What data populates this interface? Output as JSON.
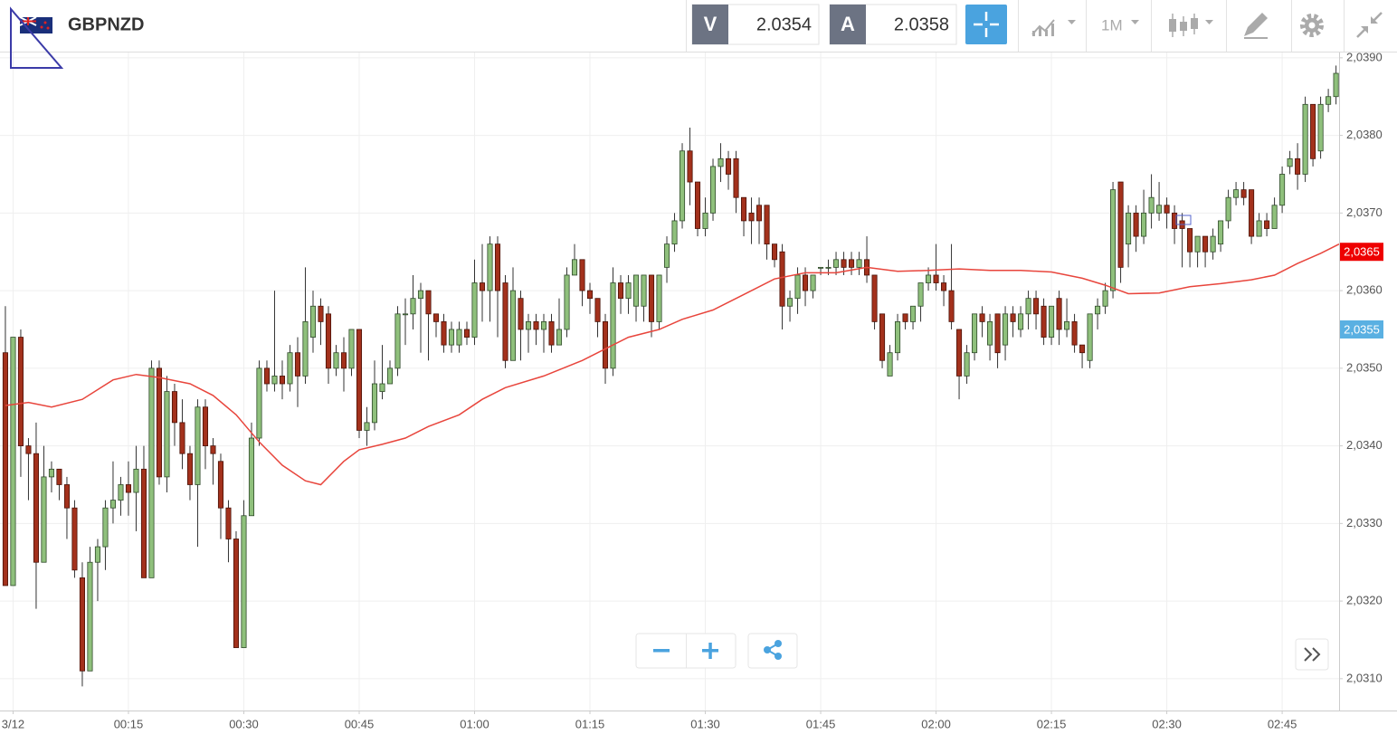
{
  "toolbar": {
    "symbol": "GBPNZD",
    "bid_label": "V",
    "bid": "2.0354",
    "ask_label": "A",
    "ask": "2.0358",
    "interval": "1M"
  },
  "chart_data": {
    "type": "candlestick",
    "x": [
      -1,
      0,
      1,
      2,
      3,
      4,
      5,
      6,
      7,
      8,
      9,
      10,
      11,
      12,
      13,
      14,
      15,
      16,
      17,
      18,
      19,
      20,
      21,
      22,
      23,
      24,
      25,
      26,
      27,
      28,
      29,
      30,
      31,
      32,
      33,
      34,
      35,
      36,
      37,
      38,
      39,
      40,
      41,
      42,
      43,
      44,
      45,
      46,
      47,
      48,
      49,
      50,
      51,
      52,
      53,
      54,
      55,
      56,
      57,
      58,
      59,
      60,
      61,
      62,
      63,
      64,
      65,
      66,
      67,
      68,
      69,
      70,
      71,
      72,
      73,
      74,
      75,
      76,
      77,
      78,
      79,
      80,
      81,
      82,
      83,
      84,
      85,
      86,
      87,
      88,
      89,
      90,
      91,
      92,
      93,
      94,
      95,
      96,
      97,
      98,
      99,
      100,
      101,
      102,
      103,
      104,
      105,
      106,
      107,
      108,
      109,
      110,
      111,
      112,
      113,
      114,
      115,
      116,
      117,
      118,
      119,
      120,
      121,
      122,
      123,
      124,
      125,
      126,
      127,
      128,
      129,
      130,
      131,
      132,
      133,
      134,
      135,
      136,
      137,
      138,
      139,
      140,
      141,
      142,
      143,
      144,
      145,
      146,
      147,
      148,
      149,
      150,
      151,
      152,
      153,
      154,
      155,
      156,
      157,
      158,
      159,
      160,
      161,
      162,
      163,
      164,
      165,
      166,
      167,
      168,
      169,
      170,
      171,
      172
    ],
    "open": [
      2.0352,
      2.0322,
      2.0354,
      2.034,
      2.0339,
      2.0325,
      2.0336,
      2.0337,
      2.0335,
      2.0332,
      2.0323,
      2.0311,
      2.0325,
      2.0327,
      2.0332,
      2.0333,
      2.0335,
      2.0334,
      2.0337,
      2.0323,
      2.035,
      2.0336,
      2.0347,
      2.0343,
      2.0339,
      2.0335,
      2.0345,
      2.034,
      2.0338,
      2.0332,
      2.0328,
      2.0314,
      2.0331,
      2.0341,
      2.035,
      2.0348,
      2.0349,
      2.0348,
      2.0352,
      2.0349,
      2.0354,
      2.0358,
      2.0357,
      2.035,
      2.0352,
      2.035,
      2.0355,
      2.0342,
      2.0343,
      2.0347,
      2.0348,
      2.035,
      2.0357,
      2.0357,
      2.0359,
      2.036,
      2.0357,
      2.0356,
      2.0353,
      2.0353,
      2.0355,
      2.0354,
      2.0361,
      2.036,
      2.0366,
      2.0361,
      2.0351,
      2.0359,
      2.0355,
      2.0356,
      2.0355,
      2.0356,
      2.0353,
      2.0355,
      2.0362,
      2.0364,
      2.036,
      2.0359,
      2.0356,
      2.035,
      2.0361,
      2.0359,
      2.0358,
      2.0358,
      2.0362,
      2.0356,
      2.0363,
      2.0366,
      2.0369,
      2.0378,
      2.0374,
      2.0368,
      2.037,
      2.0376,
      2.0377,
      2.0377,
      2.0372,
      2.037,
      2.0371,
      2.0371,
      2.0366,
      2.0365,
      2.0358,
      2.0359,
      2.0362,
      2.036,
      2.0363,
      2.0363,
      2.0363,
      2.0364,
      2.0364,
      2.0363,
      2.0364,
      2.0362,
      2.0357,
      2.0349,
      2.0352,
      2.0357,
      2.0356,
      2.0358,
      2.0361,
      2.0362,
      2.0361,
      2.036,
      2.0355,
      2.0349,
      2.0352,
      2.0357,
      2.0353,
      2.0357,
      2.0353,
      2.0357,
      2.0355,
      2.0357,
      2.0359,
      2.0358,
      2.0354,
      2.0359,
      2.0355,
      2.0356,
      2.0353,
      2.0351,
      2.0357,
      2.0358,
      2.036,
      2.0374,
      2.0366,
      2.037,
      2.0367,
      2.037,
      2.037,
      2.0371,
      2.037,
      2.0369,
      2.0368,
      2.0365,
      2.0367,
      2.0365,
      2.0366,
      2.0369,
      2.0372,
      2.0373,
      2.0373,
      2.0367,
      2.0369,
      2.0368,
      2.0371,
      2.0376,
      2.0377,
      2.0375,
      2.0384,
      2.0378,
      2.0384,
      2.0385
    ],
    "close": [
      2.0322,
      2.0354,
      2.034,
      2.0339,
      2.0325,
      2.0336,
      2.0337,
      2.0335,
      2.0332,
      2.0324,
      2.0311,
      2.0325,
      2.0327,
      2.0332,
      2.0333,
      2.0335,
      2.0334,
      2.0337,
      2.0323,
      2.035,
      2.0336,
      2.0347,
      2.0343,
      2.0339,
      2.0335,
      2.0345,
      2.034,
      2.0339,
      2.0332,
      2.0328,
      2.0314,
      2.0331,
      2.0341,
      2.035,
      2.0348,
      2.0349,
      2.0348,
      2.0352,
      2.0349,
      2.0356,
      2.0358,
      2.0356,
      2.035,
      2.0352,
      2.035,
      2.0355,
      2.0342,
      2.0343,
      2.0348,
      2.0348,
      2.035,
      2.0357,
      2.0357,
      2.0359,
      2.036,
      2.0357,
      2.0356,
      2.0353,
      2.0355,
      2.0355,
      2.0354,
      2.0361,
      2.036,
      2.0366,
      2.036,
      2.0351,
      2.036,
      2.0355,
      2.0356,
      2.0355,
      2.0356,
      2.0353,
      2.0355,
      2.0362,
      2.0364,
      2.036,
      2.0359,
      2.0356,
      2.035,
      2.0361,
      2.0359,
      2.0361,
      2.0362,
      2.0362,
      2.0356,
      2.0362,
      2.0366,
      2.0369,
      2.0378,
      2.0374,
      2.0368,
      2.037,
      2.0376,
      2.0377,
      2.0375,
      2.0372,
      2.0369,
      2.0369,
      2.0369,
      2.0366,
      2.0364,
      2.0358,
      2.0359,
      2.0362,
      2.036,
      2.0362,
      2.0363,
      2.0363,
      2.0364,
      2.0363,
      2.0363,
      2.0364,
      2.0362,
      2.0356,
      2.0351,
      2.0352,
      2.0356,
      2.0356,
      2.0358,
      2.0361,
      2.0362,
      2.0361,
      2.036,
      2.0356,
      2.0349,
      2.0352,
      2.0357,
      2.0356,
      2.0356,
      2.0352,
      2.0357,
      2.0356,
      2.0357,
      2.0359,
      2.0357,
      2.0354,
      2.0358,
      2.0355,
      2.0356,
      2.0353,
      2.0352,
      2.0357,
      2.0358,
      2.036,
      2.0373,
      2.0363,
      2.037,
      2.0367,
      2.037,
      2.0372,
      2.0371,
      2.037,
      2.0368,
      2.0368,
      2.0365,
      2.0367,
      2.0365,
      2.0367,
      2.0369,
      2.0372,
      2.0373,
      2.0372,
      2.0367,
      2.0369,
      2.0368,
      2.0371,
      2.0375,
      2.0377,
      2.0375,
      2.0384,
      2.0377,
      2.0384,
      2.0385,
      2.0388
    ],
    "high": [
      2.0358,
      2.0354,
      2.0355,
      2.0341,
      2.0343,
      2.034,
      2.0338,
      2.0337,
      2.0336,
      2.0333,
      2.0325,
      2.0327,
      2.0328,
      2.0333,
      2.0338,
      2.0336,
      2.0338,
      2.034,
      2.034,
      2.0351,
      2.0351,
      2.0349,
      2.0348,
      2.0346,
      2.034,
      2.0346,
      2.0346,
      2.0341,
      2.0339,
      2.0333,
      2.0329,
      2.0333,
      2.0343,
      2.0351,
      2.0351,
      2.036,
      2.0351,
      2.0353,
      2.0354,
      2.0363,
      2.036,
      2.0359,
      2.0358,
      2.0353,
      2.0354,
      2.0355,
      2.0355,
      2.0345,
      2.0351,
      2.0353,
      2.0351,
      2.0358,
      2.0359,
      2.0362,
      2.0361,
      2.036,
      2.0357,
      2.0357,
      2.0356,
      2.0356,
      2.0356,
      2.0364,
      2.0366,
      2.0367,
      2.0367,
      2.0362,
      2.0363,
      2.036,
      2.0357,
      2.0357,
      2.0357,
      2.0357,
      2.0359,
      2.0363,
      2.0366,
      2.0364,
      2.0361,
      2.0359,
      2.0357,
      2.0363,
      2.0362,
      2.0362,
      2.0362,
      2.0362,
      2.0362,
      2.0362,
      2.0367,
      2.037,
      2.0379,
      2.0381,
      2.0374,
      2.0372,
      2.0377,
      2.0379,
      2.0378,
      2.0378,
      2.0372,
      2.0372,
      2.0372,
      2.0371,
      2.0366,
      2.0366,
      2.036,
      2.0363,
      2.0363,
      2.0362,
      2.0363,
      2.0364,
      2.0365,
      2.0365,
      2.0365,
      2.0365,
      2.0367,
      2.0362,
      2.0357,
      2.0353,
      2.0357,
      2.0357,
      2.0358,
      2.0361,
      2.0363,
      2.0366,
      2.0362,
      2.0366,
      2.0355,
      2.0353,
      2.0357,
      2.0358,
      2.0357,
      2.0357,
      2.0358,
      2.0358,
      2.0358,
      2.036,
      2.036,
      2.0359,
      2.0358,
      2.036,
      2.0359,
      2.0357,
      2.0353,
      2.0357,
      2.0359,
      2.0361,
      2.0374,
      2.0374,
      2.0371,
      2.0371,
      2.0373,
      2.0375,
      2.0374,
      2.0372,
      2.0371,
      2.037,
      2.0368,
      2.0367,
      2.0367,
      2.0368,
      2.0369,
      2.0373,
      2.0374,
      2.0374,
      2.0373,
      2.037,
      2.037,
      2.0372,
      2.0376,
      2.0378,
      2.0379,
      2.0385,
      2.0384,
      2.0385,
      2.0386,
      2.0389
    ],
    "low": [
      2.0322,
      2.0322,
      2.0336,
      2.0333,
      2.0319,
      2.0325,
      2.0334,
      2.0333,
      2.0328,
      2.0323,
      2.0309,
      2.0311,
      2.032,
      2.0324,
      2.033,
      2.0331,
      2.0331,
      2.0329,
      2.0323,
      2.0323,
      2.0335,
      2.0334,
      2.034,
      2.0337,
      2.0333,
      2.0327,
      2.0337,
      2.0335,
      2.0328,
      2.0325,
      2.0314,
      2.0314,
      2.0331,
      2.034,
      2.0347,
      2.0347,
      2.0346,
      2.0347,
      2.0345,
      2.0348,
      2.0352,
      2.0353,
      2.0348,
      2.0349,
      2.0347,
      2.0349,
      2.0341,
      2.034,
      2.0342,
      2.0346,
      2.0348,
      2.0349,
      2.0353,
      2.0355,
      2.0352,
      2.0351,
      2.0354,
      2.0352,
      2.0352,
      2.0352,
      2.0353,
      2.0353,
      2.0356,
      2.0356,
      2.0354,
      2.035,
      2.0351,
      2.0351,
      2.0352,
      2.0353,
      2.0352,
      2.0352,
      2.0353,
      2.0354,
      2.0362,
      2.0358,
      2.0357,
      2.0354,
      2.0348,
      2.0349,
      2.0357,
      2.0357,
      2.0356,
      2.0356,
      2.0354,
      2.0355,
      2.0361,
      2.0365,
      2.0368,
      2.0371,
      2.0367,
      2.0367,
      2.0369,
      2.0374,
      2.0373,
      2.037,
      2.0367,
      2.0366,
      2.0366,
      2.0364,
      2.0363,
      2.0355,
      2.0356,
      2.0357,
      2.0358,
      2.0359,
      2.0362,
      2.0362,
      2.0362,
      2.0362,
      2.0362,
      2.0362,
      2.0361,
      2.0355,
      2.035,
      2.0349,
      2.0351,
      2.0355,
      2.0355,
      2.0356,
      2.036,
      2.036,
      2.0358,
      2.0355,
      2.0346,
      2.0348,
      2.0351,
      2.0354,
      2.0351,
      2.035,
      2.0351,
      2.0354,
      2.0354,
      2.0355,
      2.0355,
      2.0353,
      2.0353,
      2.0353,
      2.0354,
      2.0352,
      2.035,
      2.035,
      2.0355,
      2.0357,
      2.0359,
      2.0361,
      2.0363,
      2.0365,
      2.0366,
      2.0368,
      2.0369,
      2.0368,
      2.0366,
      2.0363,
      2.0363,
      2.0363,
      2.0363,
      2.0364,
      2.0365,
      2.0368,
      2.0371,
      2.0371,
      2.0366,
      2.0367,
      2.0367,
      2.0368,
      2.037,
      2.0375,
      2.0373,
      2.0374,
      2.0376,
      2.0377,
      2.0383,
      2.0384
    ],
    "up_color": "#8fc07c",
    "down_color": "#a3311c",
    "moving_average": {
      "color": "#e8453c",
      "x": [
        -1,
        2,
        5,
        9,
        13,
        16,
        19,
        23,
        26,
        29,
        32,
        35,
        38,
        40,
        43,
        45,
        48,
        51,
        54,
        58,
        61,
        64,
        69,
        74,
        77,
        80,
        84,
        87,
        91,
        95,
        99,
        103,
        107,
        111,
        115,
        119,
        123,
        127,
        131,
        135,
        139,
        142,
        145,
        149,
        153,
        157,
        161,
        164,
        167,
        170,
        172.4
      ],
      "values": [
        2.03452,
        2.03456,
        2.0345,
        2.0346,
        2.03485,
        2.03492,
        2.03488,
        2.0348,
        2.03465,
        2.0344,
        2.03405,
        2.03375,
        2.03355,
        2.0335,
        2.0338,
        2.03395,
        2.03402,
        2.0341,
        2.03425,
        2.0344,
        2.0346,
        2.03475,
        2.0349,
        2.0351,
        2.03525,
        2.0354,
        2.0355,
        2.03563,
        2.03575,
        2.03595,
        2.03615,
        2.03623,
        2.03623,
        2.0363,
        2.03625,
        2.03626,
        2.03628,
        2.03626,
        2.03626,
        2.03624,
        2.03616,
        2.03607,
        2.03596,
        2.03597,
        2.03605,
        2.03609,
        2.03614,
        2.0362,
        2.03635,
        2.03648,
        2.0366
      ]
    },
    "price_tags": [
      {
        "value": 2.0365,
        "label": "2,0365",
        "color": "#ee0000"
      },
      {
        "value": 2.0355,
        "label": "2,0355",
        "color": "#5ab0e2"
      }
    ],
    "xlim": [
      -1.7,
      172.4
    ],
    "xticks": [
      {
        "value": 0,
        "label": "3/12"
      },
      {
        "value": 15,
        "label": "00:15"
      },
      {
        "value": 30,
        "label": "00:30"
      },
      {
        "value": 45,
        "label": "00:45"
      },
      {
        "value": 60,
        "label": "01:00"
      },
      {
        "value": 75,
        "label": "01:15"
      },
      {
        "value": 90,
        "label": "01:30"
      },
      {
        "value": 105,
        "label": "01:45"
      },
      {
        "value": 120,
        "label": "02:00"
      },
      {
        "value": 135,
        "label": "02:15"
      },
      {
        "value": 150,
        "label": "02:30"
      },
      {
        "value": 165,
        "label": "02:45"
      }
    ],
    "ylim": [
      2.03059,
      2.03908
    ],
    "yticks": [
      {
        "value": 2.031,
        "label": "2,0310"
      },
      {
        "value": 2.032,
        "label": "2,0320"
      },
      {
        "value": 2.033,
        "label": "2,0330"
      },
      {
        "value": 2.034,
        "label": "2,0340"
      },
      {
        "value": 2.035,
        "label": "2,0350"
      },
      {
        "value": 2.036,
        "label": "2,0360"
      },
      {
        "value": 2.037,
        "label": "2,0370"
      },
      {
        "value": 2.038,
        "label": "2,0380"
      },
      {
        "value": 2.039,
        "label": "2,0390"
      }
    ],
    "grid": true
  }
}
